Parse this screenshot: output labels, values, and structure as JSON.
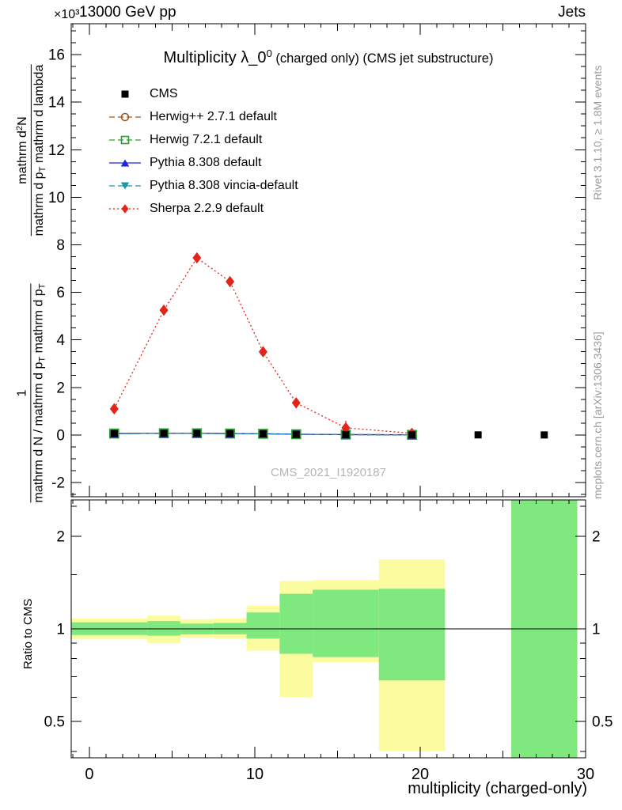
{
  "header": {
    "y_multiplier": "×10³",
    "beam": "13000 GeV pp",
    "topic": "Jets"
  },
  "side": {
    "rivet": "Rivet 3.1.10, ≥ 1.8M events",
    "mcplots": "mcplots.cern.ch [arXiv:1306.3436]"
  },
  "title": {
    "main": "Multiplicity λ_0",
    "sup": "0",
    "rest": " (charged only) (CMS jet substructure)"
  },
  "watermark": "CMS_2021_I1920187",
  "xlabel": "multiplicity (charged-only)",
  "ratio_label": "Ratio to CMS",
  "ylabel": {
    "top_num_pre": "mathrm d",
    "top_num_sup": "2",
    "top_num_post": "N",
    "top_den_pre": "mathrm d p",
    "top_den_sub": "T",
    "top_den_post": " mathrm d lambda",
    "bot_num": "1",
    "bot_den_pre": "mathrm d N / mathrm d p",
    "bot_den_sub1": "T",
    "bot_den_mid": " mathrm d p",
    "bot_den_sub2": "T"
  },
  "chart_data": {
    "type": "line",
    "title": "Multiplicity λ_0^0 (charged only) (CMS jet substructure)",
    "xlabel": "multiplicity (charged-only)",
    "y_scale_note": "main panel values ×10³",
    "main_axis": {
      "xlim": [
        -1.1,
        30
      ],
      "ylim": [
        -2.6,
        17.3
      ],
      "xticks": [
        0,
        10,
        20,
        30
      ],
      "yticks": [
        -2,
        0,
        2,
        4,
        6,
        8,
        10,
        12,
        14,
        16
      ]
    },
    "ratio_axis": {
      "scale": "log",
      "label": "Ratio to CMS",
      "ylim": [
        0.38,
        2.63
      ],
      "yticks": [
        0.5,
        1,
        2
      ],
      "minor_ticks": [
        0.4,
        0.6,
        0.7,
        0.8,
        0.9,
        1.5,
        2.5
      ]
    },
    "band_colors": {
      "yellow": "#fbfba0",
      "green": "#7fe87f"
    },
    "series": [
      {
        "label": "CMS",
        "color": "#000000",
        "marker": "square-filled",
        "line": "none",
        "x": [
          1.5,
          4.5,
          6.5,
          8.5,
          10.5,
          12.5,
          15.5,
          19.5,
          23.5,
          27.5
        ],
        "y": [
          0.06,
          0.07,
          0.07,
          0.06,
          0.05,
          0.03,
          0.015,
          0.005,
          0.003,
          0.001
        ]
      },
      {
        "label": "Herwig++ 2.7.1 default",
        "color": "#a0591e",
        "marker": "circle-open",
        "line": "dashed",
        "x": [
          1.5,
          4.5,
          6.5,
          8.5,
          10.5,
          12.5,
          15.5,
          19.5
        ],
        "y": [
          0.06,
          0.07,
          0.07,
          0.06,
          0.05,
          0.03,
          0.015,
          0.005
        ]
      },
      {
        "label": "Herwig 7.2.1 default",
        "color": "#2e9e2e",
        "marker": "square-open",
        "line": "dashed",
        "x": [
          1.5,
          4.5,
          6.5,
          8.5,
          10.5,
          12.5,
          15.5,
          19.5
        ],
        "y": [
          0.06,
          0.07,
          0.07,
          0.06,
          0.05,
          0.03,
          0.015,
          0.005
        ]
      },
      {
        "label": "Pythia 8.308 default",
        "color": "#2020dd",
        "marker": "triangle-up-filled",
        "line": "solid",
        "x": [
          1.5,
          4.5,
          6.5,
          8.5,
          10.5,
          12.5,
          15.5,
          19.5
        ],
        "y": [
          0.06,
          0.07,
          0.07,
          0.06,
          0.05,
          0.03,
          0.015,
          0.005
        ]
      },
      {
        "label": "Pythia 8.308 vincia-default",
        "color": "#189aa5",
        "marker": "triangle-down-filled",
        "line": "dashed",
        "x": [
          1.5,
          4.5,
          6.5,
          8.5,
          10.5,
          12.5,
          15.5,
          19.5
        ],
        "y": [
          0.06,
          0.07,
          0.07,
          0.06,
          0.05,
          0.03,
          0.015,
          0.005
        ]
      },
      {
        "label": "Sherpa 2.2.9 default",
        "color": "#e32419",
        "marker": "diamond-filled",
        "line": "dotted",
        "x": [
          1.5,
          4.5,
          6.5,
          8.5,
          10.5,
          12.5,
          15.5,
          19.5
        ],
        "y": [
          1.1,
          5.25,
          7.45,
          6.45,
          3.5,
          1.35,
          0.3,
          0.07
        ],
        "yerr": [
          0.1,
          0.12,
          0.15,
          0.13,
          0.1,
          0.1,
          0.3,
          0.1
        ]
      }
    ],
    "ratio_bands": [
      {
        "x0": -1.1,
        "x1": 3.5,
        "yellow": [
          0.925,
          1.08
        ],
        "green": [
          0.955,
          1.05
        ]
      },
      {
        "x0": 3.5,
        "x1": 5.5,
        "yellow": [
          0.9,
          1.105
        ],
        "green": [
          0.95,
          1.06
        ]
      },
      {
        "x0": 5.5,
        "x1": 7.5,
        "yellow": [
          0.935,
          1.075
        ],
        "green": [
          0.96,
          1.04
        ]
      },
      {
        "x0": 7.5,
        "x1": 9.5,
        "yellow": [
          0.93,
          1.08
        ],
        "green": [
          0.96,
          1.045
        ]
      },
      {
        "x0": 9.5,
        "x1": 11.5,
        "yellow": [
          0.85,
          1.19
        ],
        "green": [
          0.93,
          1.13
        ]
      },
      {
        "x0": 11.5,
        "x1": 13.5,
        "yellow": [
          0.6,
          1.43
        ],
        "green": [
          0.83,
          1.3
        ]
      },
      {
        "x0": 13.5,
        "x1": 17.5,
        "yellow": [
          0.78,
          1.44
        ],
        "green": [
          0.81,
          1.34
        ]
      },
      {
        "x0": 17.5,
        "x1": 21.5,
        "yellow": [
          0.4,
          1.68
        ],
        "green": [
          0.68,
          1.35
        ]
      },
      {
        "x0": 25.5,
        "x1": 29.5,
        "yellow": null,
        "green": [
          0.37,
          2.7
        ]
      }
    ]
  }
}
